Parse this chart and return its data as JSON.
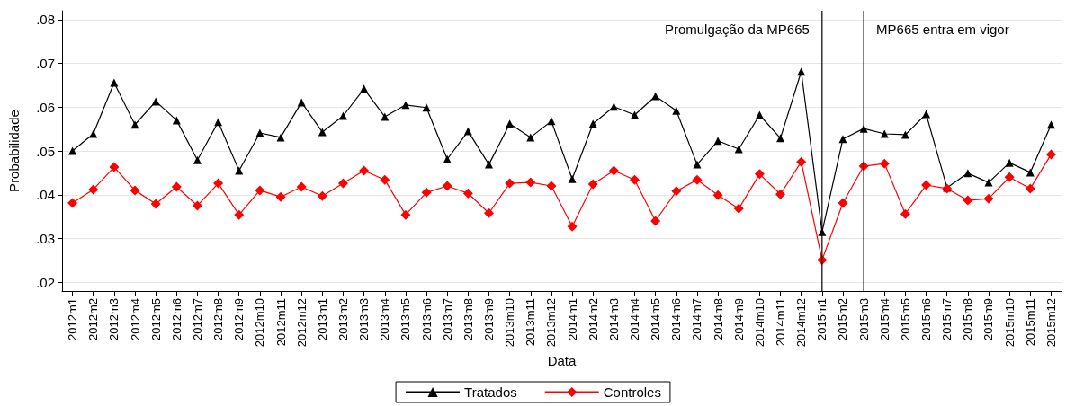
{
  "chart_data": {
    "type": "line",
    "xlabel": "Data",
    "ylabel": "Probabilidade",
    "categories": [
      "2012m1",
      "2012m2",
      "2012m3",
      "2012m4",
      "2012m5",
      "2012m6",
      "2012m7",
      "2012m8",
      "2012m9",
      "2012m10",
      "2012m11",
      "2012m12",
      "2013m1",
      "2013m2",
      "2013m3",
      "2013m4",
      "2013m5",
      "2013m6",
      "2013m7",
      "2013m8",
      "2013m9",
      "2013m10",
      "2013m11",
      "2013m12",
      "2014m1",
      "2014m2",
      "2014m3",
      "2014m4",
      "2014m5",
      "2014m6",
      "2014m7",
      "2014m8",
      "2014m9",
      "2014m10",
      "2014m11",
      "2014m12",
      "2015m1",
      "2015m2",
      "2015m3",
      "2015m4",
      "2015m5",
      "2015m6",
      "2015m7",
      "2015m8",
      "2015m9",
      "2015m10",
      "2015m11",
      "2015m12"
    ],
    "series": [
      {
        "name": "Tratados",
        "color": "#000000",
        "marker": "triangle",
        "values": [
          0.05,
          0.0539,
          0.0656,
          0.056,
          0.0613,
          0.057,
          0.0479,
          0.0566,
          0.0455,
          0.0541,
          0.0531,
          0.0611,
          0.0543,
          0.058,
          0.0642,
          0.0578,
          0.0605,
          0.0599,
          0.0481,
          0.0545,
          0.0469,
          0.0562,
          0.0531,
          0.0568,
          0.0436,
          0.0562,
          0.0601,
          0.0582,
          0.0625,
          0.0592,
          0.0469,
          0.0523,
          0.0504,
          0.0582,
          0.0529,
          0.0681,
          0.0315,
          0.0527,
          0.0551,
          0.0539,
          0.0537,
          0.0584,
          0.0416,
          0.0449,
          0.0428,
          0.0473,
          0.0451,
          0.056
        ]
      },
      {
        "name": "Controles",
        "color": "#ff0000",
        "marker": "diamond",
        "values": [
          0.0381,
          0.0412,
          0.0463,
          0.041,
          0.0379,
          0.0418,
          0.0375,
          0.0426,
          0.0354,
          0.041,
          0.0395,
          0.0418,
          0.0397,
          0.0426,
          0.0455,
          0.0434,
          0.0354,
          0.0405,
          0.042,
          0.0403,
          0.0358,
          0.0426,
          0.0428,
          0.042,
          0.0327,
          0.0424,
          0.0455,
          0.0434,
          0.034,
          0.0408,
          0.0434,
          0.0399,
          0.0368,
          0.0447,
          0.0401,
          0.0475,
          0.0251,
          0.0381,
          0.0465,
          0.0471,
          0.0356,
          0.0422,
          0.0414,
          0.0387,
          0.0391,
          0.044,
          0.0414,
          0.0492
        ]
      }
    ],
    "ylim": [
      0.018,
      0.082
    ],
    "yticks": [
      {
        "value": 0.02,
        "label": ".02"
      },
      {
        "value": 0.03,
        "label": ".03"
      },
      {
        "value": 0.04,
        "label": ".04"
      },
      {
        "value": 0.05,
        "label": ".05"
      },
      {
        "value": 0.06,
        "label": ".06"
      },
      {
        "value": 0.07,
        "label": ".07"
      },
      {
        "value": 0.08,
        "label": ".08"
      }
    ],
    "grid": "y",
    "legend": "bottom",
    "ref_lines": [
      {
        "axis": "x",
        "value": "2015m1",
        "label": "Promulgação da MP665",
        "color": "#000000"
      },
      {
        "axis": "x",
        "value": "2015m3",
        "label": "MP665 entra em vigor",
        "color": "#000000"
      }
    ]
  }
}
